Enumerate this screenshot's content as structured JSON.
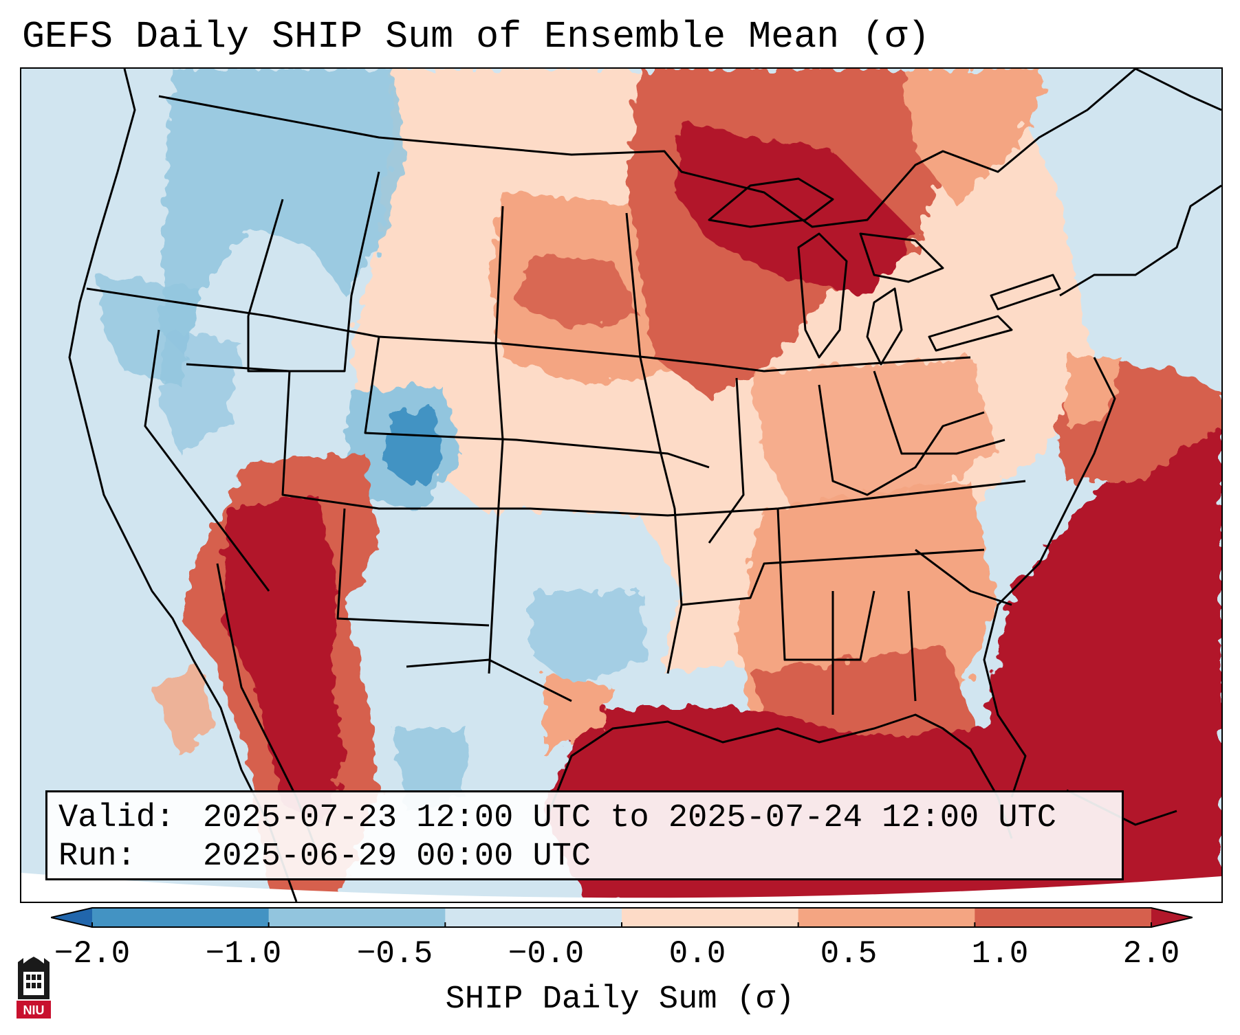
{
  "title": "GEFS Daily SHIP Sum of Ensemble Mean (σ)",
  "info": {
    "valid_label": "Valid:",
    "valid_value": "2025-07-23 12:00 UTC to 2025-07-24 12:00 UTC",
    "run_label": "Run:",
    "run_value": "2025-06-29 00:00 UTC"
  },
  "colorbar": {
    "label": "SHIP Daily Sum (σ)",
    "ticks": [
      "−2.0",
      "−1.0",
      "−0.5",
      "−0.0",
      "0.0",
      "0.5",
      "1.0",
      "2.0"
    ],
    "colors": [
      "#2166ac",
      "#4393c3",
      "#92c5de",
      "#d1e5f0",
      "#fddbc7",
      "#f4a582",
      "#d6604d",
      "#b2182b"
    ]
  },
  "map": {
    "region": "Contiguous United States",
    "anomaly_regions": [
      {
        "area": "Pacific Northwest",
        "level": "-1.0 to -0.5",
        "color": "#92c5de"
      },
      {
        "area": "Colorado",
        "level": "-2.0 to -1.0",
        "color": "#4393c3"
      },
      {
        "area": "Texas",
        "level": "-1.0 to -0.0",
        "color": "#92c5de"
      },
      {
        "area": "Northern Plains",
        "level": "0.5 to 1.0",
        "color": "#f4a582"
      },
      {
        "area": "Upper Midwest / Great Lakes",
        "level": "1.0 to 2.0",
        "color": "#d6604d"
      },
      {
        "area": "Arizona / Baja",
        "level": "> 2.0",
        "color": "#b2182b"
      },
      {
        "area": "Gulf of Mexico",
        "level": "> 2.0",
        "color": "#b2182b"
      },
      {
        "area": "Western Atlantic",
        "level": "> 2.0",
        "color": "#b2182b"
      }
    ]
  },
  "logo": {
    "text": "NIU",
    "icon": "niu-castle-icon"
  }
}
